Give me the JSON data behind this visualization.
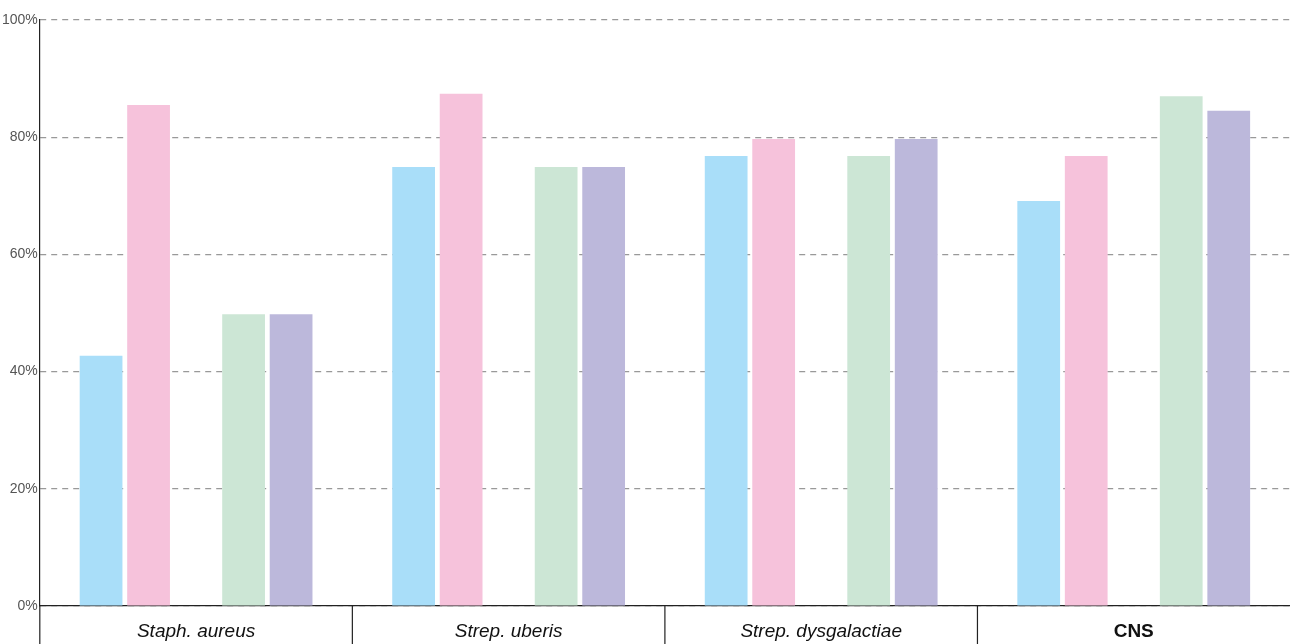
{
  "chart_data": {
    "type": "bar",
    "categories": [
      "Staph. aureus",
      "Strep. uberis",
      "Strep. dysgalactiae",
      "CNS"
    ],
    "series": [
      {
        "color": "#a9def9",
        "values": [
          42.7,
          74.9,
          76.8,
          69.1
        ]
      },
      {
        "color": "#f6c2db",
        "values": [
          85.5,
          87.4,
          79.7,
          76.8
        ]
      },
      {
        "color": "#cce6d5",
        "values": [
          49.8,
          74.9,
          76.8,
          87.0
        ]
      },
      {
        "color": "#bcb8db",
        "values": [
          49.8,
          74.9,
          79.7,
          84.5
        ]
      }
    ],
    "ylim": [
      0,
      100
    ],
    "yticks": [
      {
        "value": 0,
        "label": "0%"
      },
      {
        "value": 20,
        "label": "20%"
      },
      {
        "value": 40,
        "label": "40%"
      },
      {
        "value": 60,
        "label": "60%"
      },
      {
        "value": 80,
        "label": "80%"
      },
      {
        "value": 100,
        "label": "100%"
      }
    ],
    "grid": "y",
    "legend": false
  }
}
